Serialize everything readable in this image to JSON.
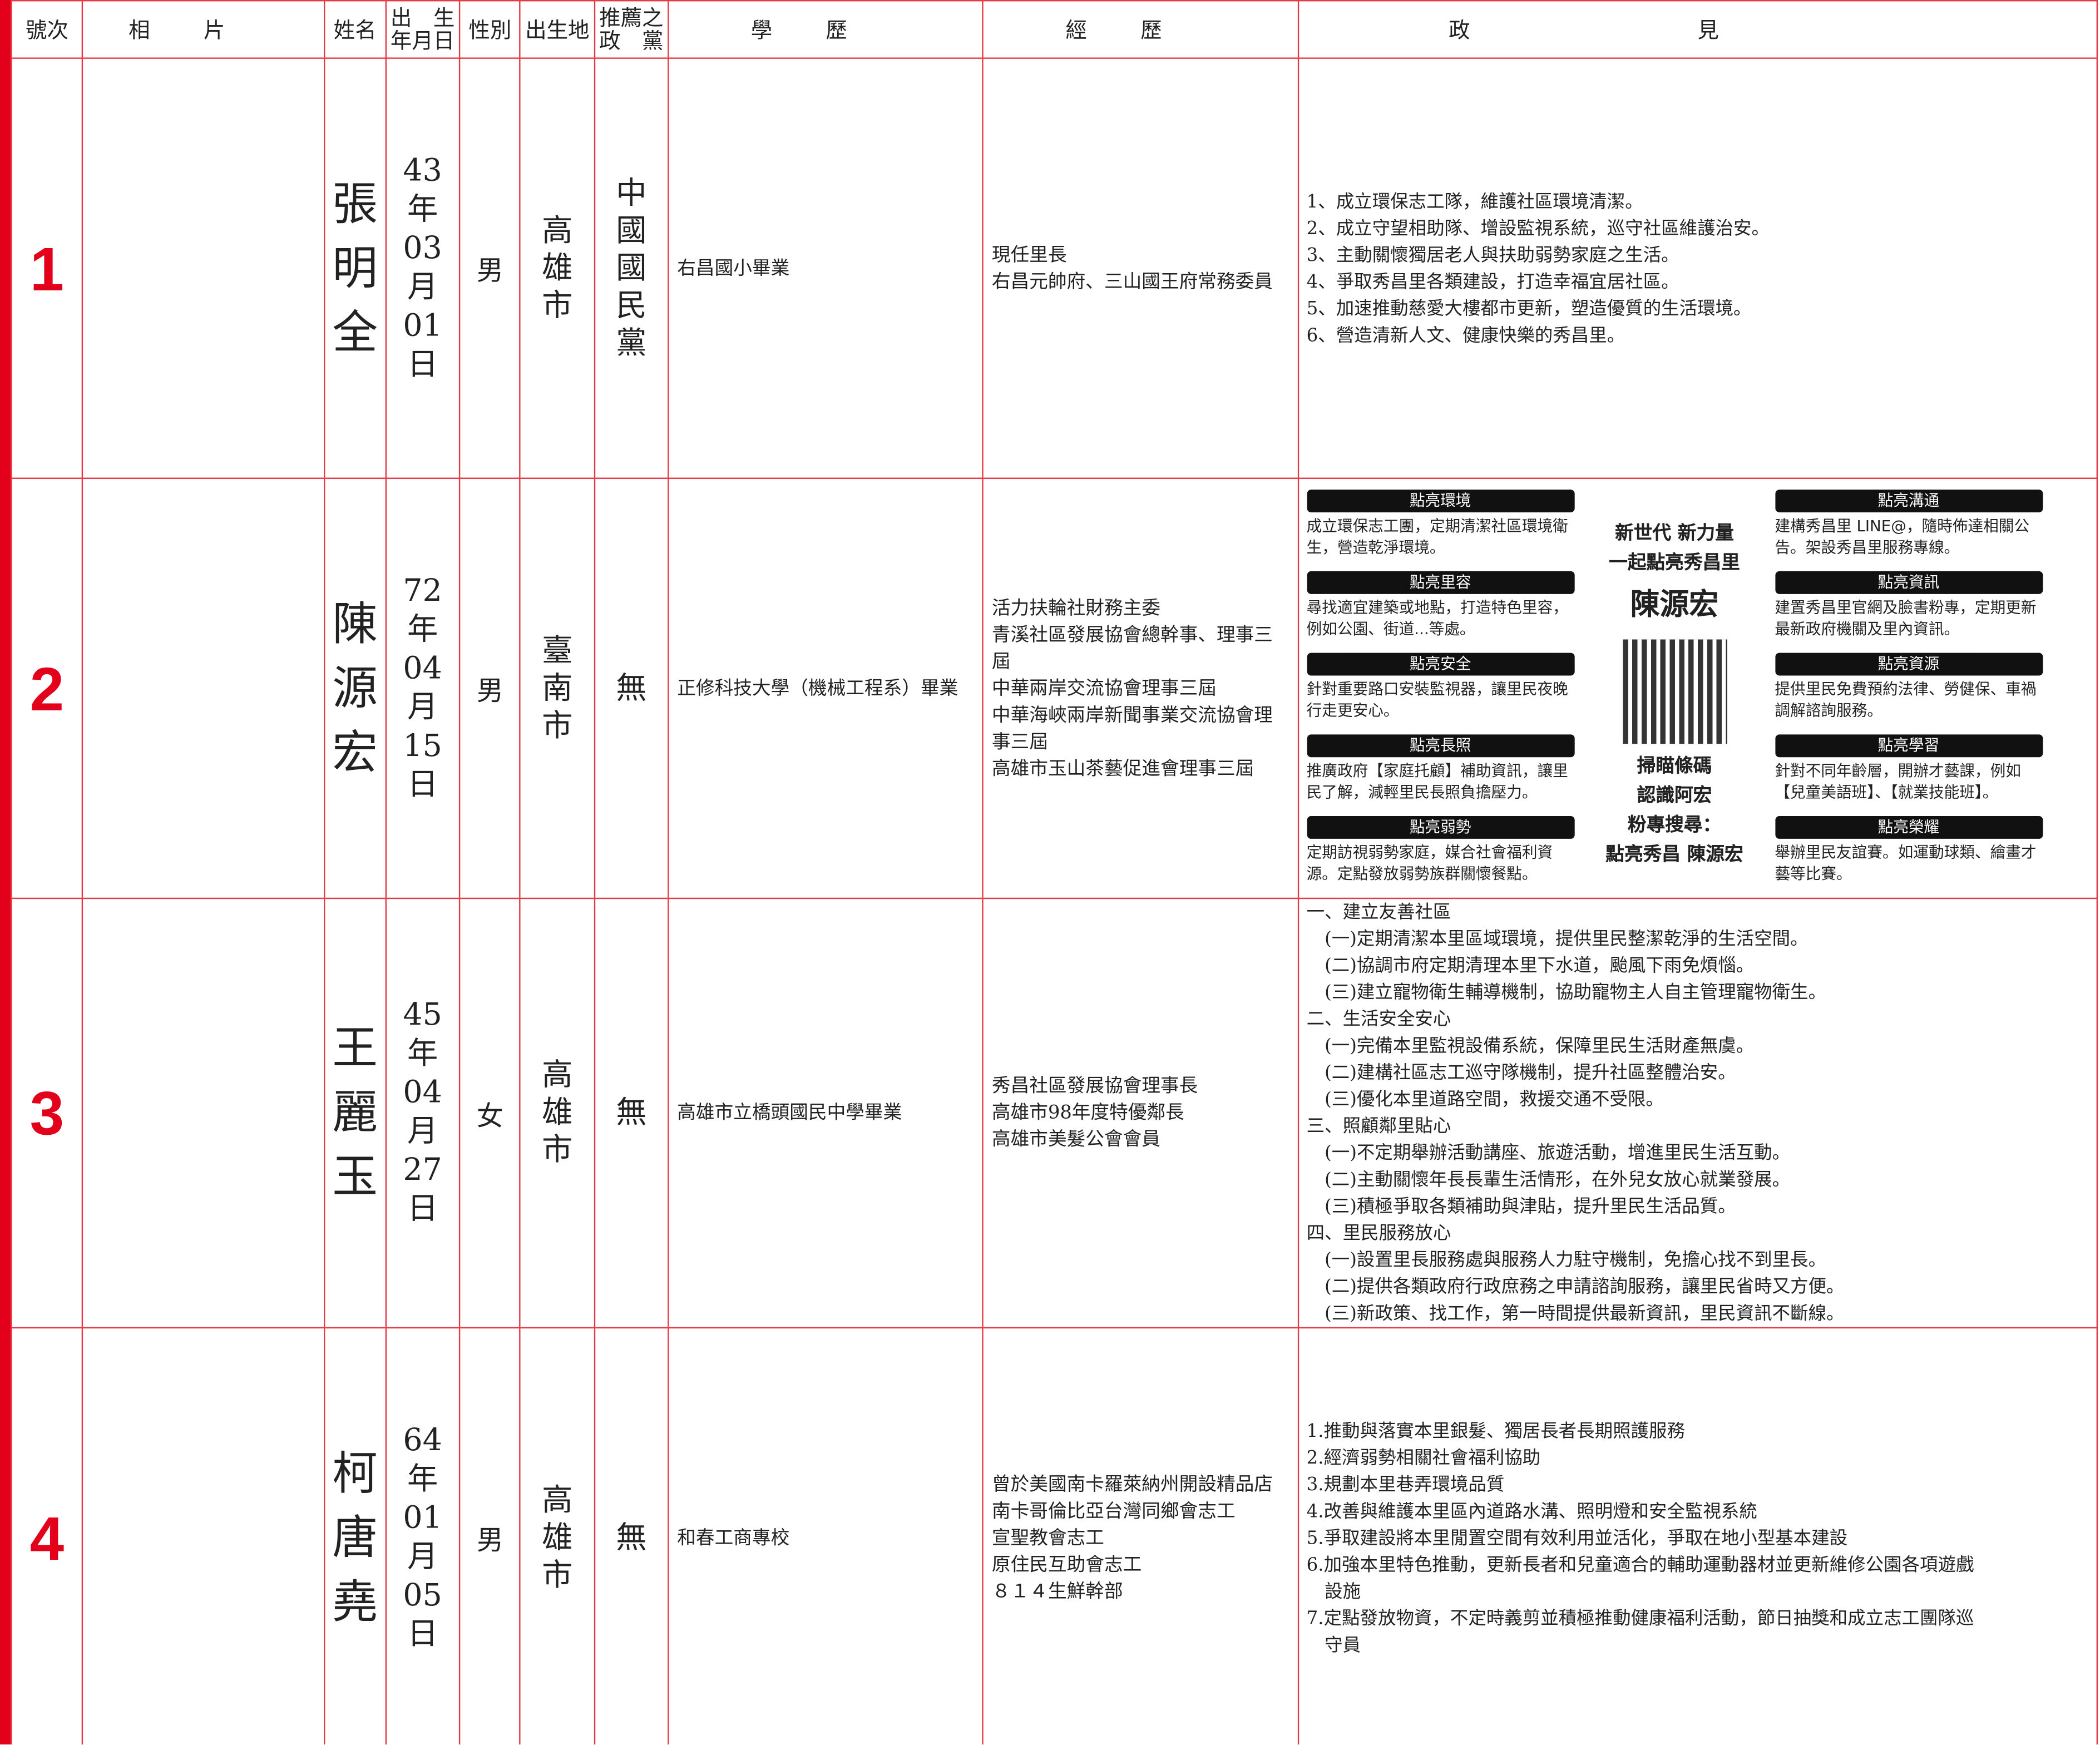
{
  "header": {
    "columns": [
      "號次",
      "相片",
      "姓名",
      [
        "出　生",
        "年月日"
      ],
      "性別",
      "出生地",
      [
        "推薦之",
        "政　黨"
      ],
      "學歷",
      "經歷",
      "政見"
    ]
  },
  "candidates": [
    {
      "number": "1",
      "name": "張明全",
      "birth": "43年03月01日",
      "gender": "男",
      "birthplace": "高雄市",
      "party": "中國國民黨",
      "education": "右昌國小畢業",
      "experience": [
        "現任里長",
        "右昌元帥府、三山國王府常務委員"
      ],
      "platform": [
        "1、成立環保志工隊，維護社區環境清潔。",
        "2、成立守望相助隊、增設監視系統，巡守社區維護治安。",
        "3、主動關懷獨居老人與扶助弱勢家庭之生活。",
        "4、爭取秀昌里各類建設，打造幸福宜居社區。",
        "5、加速推動慈愛大樓都市更新，塑造優質的生活環境。",
        "6、營造清新人文、健康快樂的秀昌里。"
      ]
    },
    {
      "number": "2",
      "name": "陳源宏",
      "birth": "72年04月15日",
      "gender": "男",
      "birthplace": "臺南市",
      "party": "無",
      "education": "正修科技大學（機械工程系）畢業",
      "experience": [
        "活力扶輪社財務主委",
        "青溪社區發展協會總幹事、理事三屆",
        "中華兩岸交流協會理事三屆",
        "中華海峽兩岸新聞事業交流協會理事三屆",
        "高雄市玉山茶藝促進會理事三屆"
      ],
      "platform": {
        "left": [
          {
            "title": "點亮環境",
            "text": "成立環保志工團，定期清潔社區環境衛生，營造乾淨環境。"
          },
          {
            "title": "點亮里容",
            "text": "尋找適宜建築或地點，打造特色里容，例如公園、街道...等處。"
          },
          {
            "title": "點亮安全",
            "text": "針對重要路口安裝監視器，讓里民夜晚行走更安心。"
          },
          {
            "title": "點亮長照",
            "text": "推廣政府【家庭托顧】補助資訊，讓里民了解，減輕里民長照負擔壓力。"
          },
          {
            "title": "點亮弱勢",
            "text": "定期訪視弱勢家庭，媒合社會福利資源。定點發放弱勢族群關懷餐點。"
          }
        ],
        "center": {
          "slogan": [
            "新世代 新力量",
            "一起點亮秀昌里"
          ],
          "name": "陳源宏",
          "caption": [
            "掃瞄條碼",
            "認識阿宏",
            "粉專搜尋：",
            "點亮秀昌 陳源宏"
          ]
        },
        "right": [
          {
            "title": "點亮溝通",
            "text": "建構秀昌里 LINE@，隨時佈達相關公告。架設秀昌里服務專線。"
          },
          {
            "title": "點亮資訊",
            "text": "建置秀昌里官網及臉書粉專，定期更新最新政府機關及里內資訊。"
          },
          {
            "title": "點亮資源",
            "text": "提供里民免費預約法律、勞健保、車禍調解諮詢服務。"
          },
          {
            "title": "點亮學習",
            "text": "針對不同年齡層，開辦才藝課，例如【兒童美語班】、【就業技能班】。"
          },
          {
            "title": "點亮榮耀",
            "text": "舉辦里民友誼賽。如運動球類、繪畫才藝等比賽。"
          }
        ]
      }
    },
    {
      "number": "3",
      "name": "王麗玉",
      "birth": "45年04月27日",
      "gender": "女",
      "birthplace": "高雄市",
      "party": "無",
      "education": "高雄市立橋頭國民中學畢業",
      "experience": [
        "秀昌社區發展協會理事長",
        "高雄市98年度特優鄰長",
        "高雄市美髮公會會員"
      ],
      "platform": [
        "一、建立友善社區",
        "　(一)定期清潔本里區域環境，提供里民整潔乾淨的生活空間。",
        "　(二)協調市府定期清理本里下水道，颱風下雨免煩惱。",
        "　(三)建立寵物衛生輔導機制，協助寵物主人自主管理寵物衛生。",
        "二、生活安全安心",
        "　(一)完備本里監視設備系統，保障里民生活財產無虞。",
        "　(二)建構社區志工巡守隊機制，提升社區整體治安。",
        "　(三)優化本里道路空間，救援交通不受限。",
        "三、照顧鄰里貼心",
        "　(一)不定期舉辦活動講座、旅遊活動，增進里民生活互動。",
        "　(二)主動關懷年長長輩生活情形，在外兒女放心就業發展。",
        "　(三)積極爭取各類補助與津貼，提升里民生活品質。",
        "四、里民服務放心",
        "　(一)設置里長服務處與服務人力駐守機制，免擔心找不到里長。",
        "　(二)提供各類政府行政庶務之申請諮詢服務，讓里民省時又方便。",
        "　(三)新政策、找工作，第一時間提供最新資訊，里民資訊不斷線。"
      ]
    },
    {
      "number": "4",
      "name": "柯唐堯",
      "birth": "64年01月05日",
      "gender": "男",
      "birthplace": "高雄市",
      "party": "無",
      "education": "和春工商專校",
      "experience": [
        "曾於美國南卡羅萊納州開設精品店",
        "南卡哥倫比亞台灣同鄉會志工",
        "宣聖教會志工",
        "原住民互助會志工",
        "８１４生鮮幹部"
      ],
      "platform": [
        "1.推動與落實本里銀髮、獨居長者長期照護服務",
        "2.經濟弱勢相關社會福利協助",
        "3.規劃本里巷弄環境品質",
        "4.改善與維護本里區內道路水溝、照明燈和安全監視系統",
        "5.爭取建設將本里閒置空間有效利用並活化，爭取在地小型基本建設",
        "6.加強本里特色推動，更新長者和兒童適合的輔助運動器材並更新維修公園各項遊戲",
        "　設施",
        "7.定點發放物資，不定時義剪並積極推動健康福利活動，節日抽獎和成立志工團隊巡",
        "　守員"
      ]
    }
  ]
}
